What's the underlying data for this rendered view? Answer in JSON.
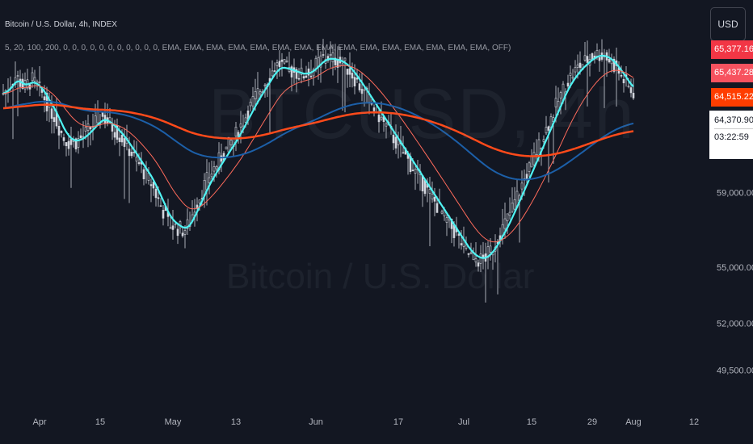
{
  "header": {
    "title": "Bitcoin / U.S. Dollar, 4h, INDEX",
    "indicator": "5, 20, 100, 200, 0, 0, 0, 0, 0, 0, 0, 0, 0, 0, 0, EMA, EMA, EMA, EMA, EMA, EMA, EMA, EMA, EMA, EMA, EMA, EMA, EMA, EMA, EMA, OFF)"
  },
  "watermark": {
    "symbol": "BTCUSD, 4h",
    "name": "Bitcoin / U.S. Dollar"
  },
  "currency_button": "USD",
  "price_tags": [
    {
      "label": "65,377.16",
      "color": "#f23645"
    },
    {
      "label": "65,437.28",
      "color": "#f7525f"
    },
    {
      "label": "64,515.22",
      "color": "#ff3d00"
    }
  ],
  "last_price": {
    "price": "64,370.90",
    "countdown": "03:22:59"
  },
  "chart_data": {
    "type": "line",
    "y_axis": {
      "ticks": [
        {
          "label": "59,000.00",
          "value": 59000
        },
        {
          "label": "55,000.00",
          "value": 55000
        },
        {
          "label": "52,000.00",
          "value": 52000
        },
        {
          "label": "49,500.00",
          "value": 49500
        }
      ]
    },
    "x_axis": {
      "ticks": [
        {
          "label": "Apr",
          "index": 15
        },
        {
          "label": "15",
          "index": 40
        },
        {
          "label": "May",
          "index": 70
        },
        {
          "label": "13",
          "index": 96
        },
        {
          "label": "Jun",
          "index": 129
        },
        {
          "label": "17",
          "index": 163
        },
        {
          "label": "Jul",
          "index": 190
        },
        {
          "label": "15",
          "index": 218
        },
        {
          "label": "29",
          "index": 243
        },
        {
          "label": "Aug",
          "index": 260
        },
        {
          "label": "12",
          "index": 285
        }
      ]
    },
    "price_closes": [
      64300,
      64450,
      64600,
      64800,
      65000,
      65200,
      65100,
      64900,
      64700,
      64650,
      64800,
      64900,
      65000,
      64850,
      64700,
      64500,
      64300,
      64050,
      63800,
      63500,
      63300,
      63100,
      62800,
      62500,
      62200,
      61900,
      61800,
      61700,
      61600,
      61650,
      61700,
      61800,
      61900,
      62000,
      62150,
      62300,
      62450,
      62600,
      62750,
      62900,
      63000,
      63050,
      62950,
      62800,
      62650,
      62500,
      62350,
      62200,
      62050,
      61900,
      61700,
      61500,
      61300,
      61100,
      60900,
      60700,
      60500,
      60300,
      60100,
      59900,
      59700,
      59500,
      59200,
      58900,
      58600,
      58300,
      58000,
      57700,
      57400,
      57300,
      57200,
      57150,
      57100,
      57050,
      57000,
      57050,
      57200,
      57500,
      57850,
      58200,
      58500,
      58800,
      59100,
      59400,
      59650,
      59900,
      60100,
      60300,
      60500,
      60700,
      60900,
      61100,
      61300,
      61500,
      61700,
      61900,
      62100,
      62350,
      62600,
      62850,
      63100,
      63350,
      63600,
      63850,
      64100,
      64300,
      64500,
      64700,
      64900,
      65100,
      65300,
      65500,
      65700,
      65800,
      65850,
      65800,
      65700,
      65600,
      65550,
      65500,
      65450,
      65400,
      65350,
      65300,
      65300,
      65350,
      65400,
      65500,
      65650,
      65800,
      65950,
      66100,
      66200,
      66250,
      66250,
      66200,
      66150,
      66100,
      66050,
      66000,
      65900,
      65800,
      65650,
      65500,
      65300,
      65100,
      64900,
      64700,
      64500,
      64300,
      64100,
      63900,
      63700,
      63500,
      63300,
      63100,
      62900,
      62700,
      62500,
      62300,
      62100,
      61900,
      61700,
      61500,
      61300,
      61100,
      60900,
      60700,
      60500,
      60300,
      60100,
      59900,
      59700,
      59500,
      59300,
      59100,
      58900,
      58700,
      58500,
      58300,
      58100,
      57900,
      57700,
      57500,
      57300,
      57100,
      56900,
      56700,
      56500,
      56300,
      56100,
      55900,
      55700,
      55600,
      55500,
      55450,
      55400,
      55400,
      55450,
      55550,
      55700,
      55900,
      56100,
      56350,
      56600,
      56850,
      57100,
      57350,
      57600,
      57900,
      58200,
      58500,
      58800,
      59100,
      59400,
      59700,
      60000,
      60300,
      60600,
      60900,
      61200,
      61500,
      61800,
      62100,
      62400,
      62700,
      63000,
      63300,
      63600,
      63900,
      64200,
      64500,
      64800,
      65000,
      65200,
      65350,
      65500,
      65650,
      65800,
      65900,
      66000,
      66100,
      66200,
      66300,
      66350,
      66400,
      66400,
      66350,
      66300,
      66200,
      66100,
      65950,
      65800,
      65600,
      65400,
      65200,
      65000,
      64800,
      64600,
      64450,
      64370
    ],
    "series": [
      {
        "name": "EMA 5",
        "period": 5,
        "color": "#4ff3f3",
        "width": 2.2
      },
      {
        "name": "EMA 20",
        "period": 20,
        "color": "#ff6b5b",
        "width": 1
      },
      {
        "name": "EMA 100",
        "period": 100,
        "color": "#1c5fa8",
        "width": 2
      },
      {
        "name": "EMA 200",
        "period": 200,
        "color": "#ff4a1a",
        "width": 2.5
      }
    ]
  },
  "colors": {
    "background": "#131722",
    "candle": "#d1d4dc",
    "axis_text": "#b2b5be"
  }
}
